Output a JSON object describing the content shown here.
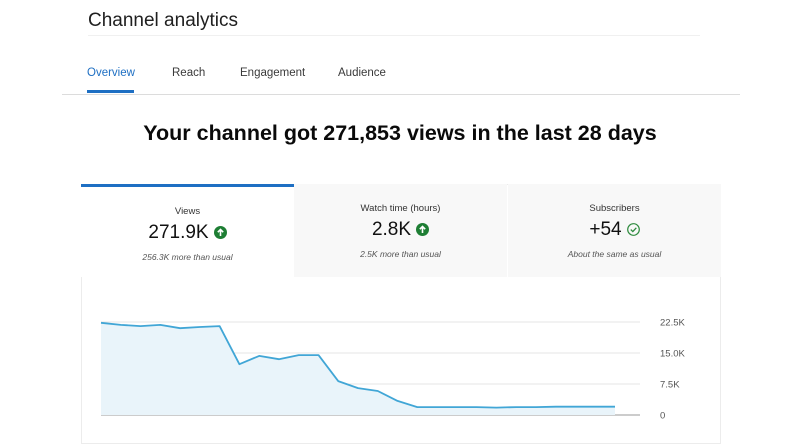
{
  "header": {
    "title": "Channel analytics"
  },
  "tabs": [
    "Overview",
    "Reach",
    "Engagement",
    "Audience"
  ],
  "headline": "Your channel got 271,853 views in the last 28 days",
  "cards": [
    {
      "label": "Views",
      "value": "271.9K",
      "note": "256.3K more than usual"
    },
    {
      "label": "Watch time (hours)",
      "value": "2.8K",
      "note": "2.5K more than usual"
    },
    {
      "label": "Subscribers",
      "value": "+54",
      "note": "About the same as usual"
    }
  ],
  "chart_data": {
    "type": "line",
    "color": "#41a6d6",
    "fill": "#e9f4fa",
    "grid": true,
    "values": [
      22300,
      21800,
      21500,
      21800,
      21000,
      21300,
      21500,
      12300,
      14300,
      13500,
      14500,
      14500,
      8200,
      6500,
      5800,
      3400,
      1900,
      1900,
      1900,
      1900,
      1800,
      1900,
      1900,
      2000,
      2000,
      2000,
      2000
    ],
    "ylim": [
      0,
      22500
    ],
    "yticks": [
      0,
      {
        "value": 7500,
        "label": "7.5K"
      },
      {
        "value": 15000,
        "label": "15.0K"
      },
      {
        "value": 22500,
        "label": "22.5K"
      }
    ]
  }
}
